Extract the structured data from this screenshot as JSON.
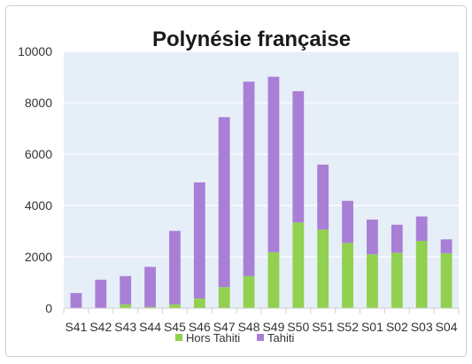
{
  "chart_data": {
    "type": "bar",
    "stacked": true,
    "title": "Polynésie française",
    "xlabel": "",
    "ylabel": "",
    "ylim": [
      0,
      10000
    ],
    "yticks": [
      0,
      2000,
      4000,
      6000,
      8000,
      10000
    ],
    "grid": true,
    "legend": "bottom",
    "categories": [
      "S41",
      "S42",
      "S43",
      "S44",
      "S45",
      "S46",
      "S47",
      "S48",
      "S49",
      "S50",
      "S51",
      "S52",
      "S01",
      "S02",
      "S03",
      "S04"
    ],
    "series": [
      {
        "name": "Hors Tahiti",
        "color": "#92d050",
        "values": [
          0,
          0,
          150,
          50,
          150,
          380,
          820,
          1250,
          2180,
          3340,
          3060,
          2540,
          2100,
          2160,
          2620,
          2140
        ]
      },
      {
        "name": "Tahiti",
        "color": "#a97fd6",
        "values": [
          590,
          1110,
          1100,
          1560,
          2860,
          4520,
          6620,
          7570,
          6830,
          5110,
          2530,
          1640,
          1350,
          1090,
          950,
          540
        ]
      }
    ],
    "colors": {
      "plot_bg": "#e6eef8",
      "grid": "#ffffff",
      "axis": "#cfcfcf"
    }
  }
}
